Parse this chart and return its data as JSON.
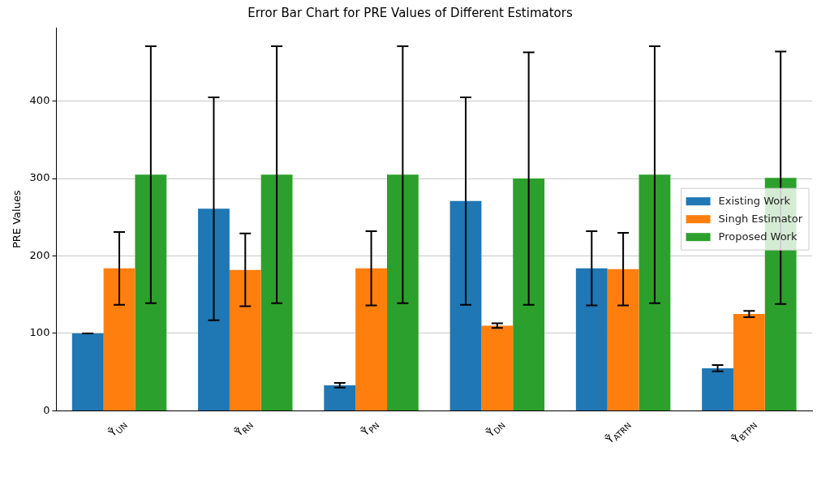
{
  "chart_data": {
    "type": "bar",
    "title": "Error Bar Chart for PRE Values of Different Estimators",
    "ylabel": "PRE Values",
    "categories": [
      "Ȳ̂$_{UN}$",
      "Ȳ̂$_{RN}$",
      "Ȳ̂$_{PN}$",
      "Ȳ̂$_{DN}$",
      "Ȳ̂$_{ATRN}$",
      "Ȳ̂$_{BTPN}$"
    ],
    "series": [
      {
        "name": "Existing Work",
        "color": "#1f77b4",
        "values": [
          100,
          261,
          33,
          271,
          184,
          55
        ],
        "errors": [
          0,
          144,
          3,
          134,
          48,
          4
        ]
      },
      {
        "name": "Singh Estimator",
        "color": "#ff7f0e",
        "values": [
          184,
          182,
          184,
          110,
          183,
          125
        ],
        "errors": [
          47,
          47,
          48,
          3,
          47,
          4
        ]
      },
      {
        "name": "Proposed Work",
        "color": "#2ca02c",
        "values": [
          305,
          305,
          305,
          300,
          305,
          301
        ],
        "errors": [
          166,
          166,
          166,
          163,
          166,
          163
        ]
      }
    ],
    "ylim": [
      0,
      495
    ],
    "yticks": [
      0,
      100,
      200,
      300,
      400
    ],
    "grid": "y",
    "legend": "right"
  }
}
